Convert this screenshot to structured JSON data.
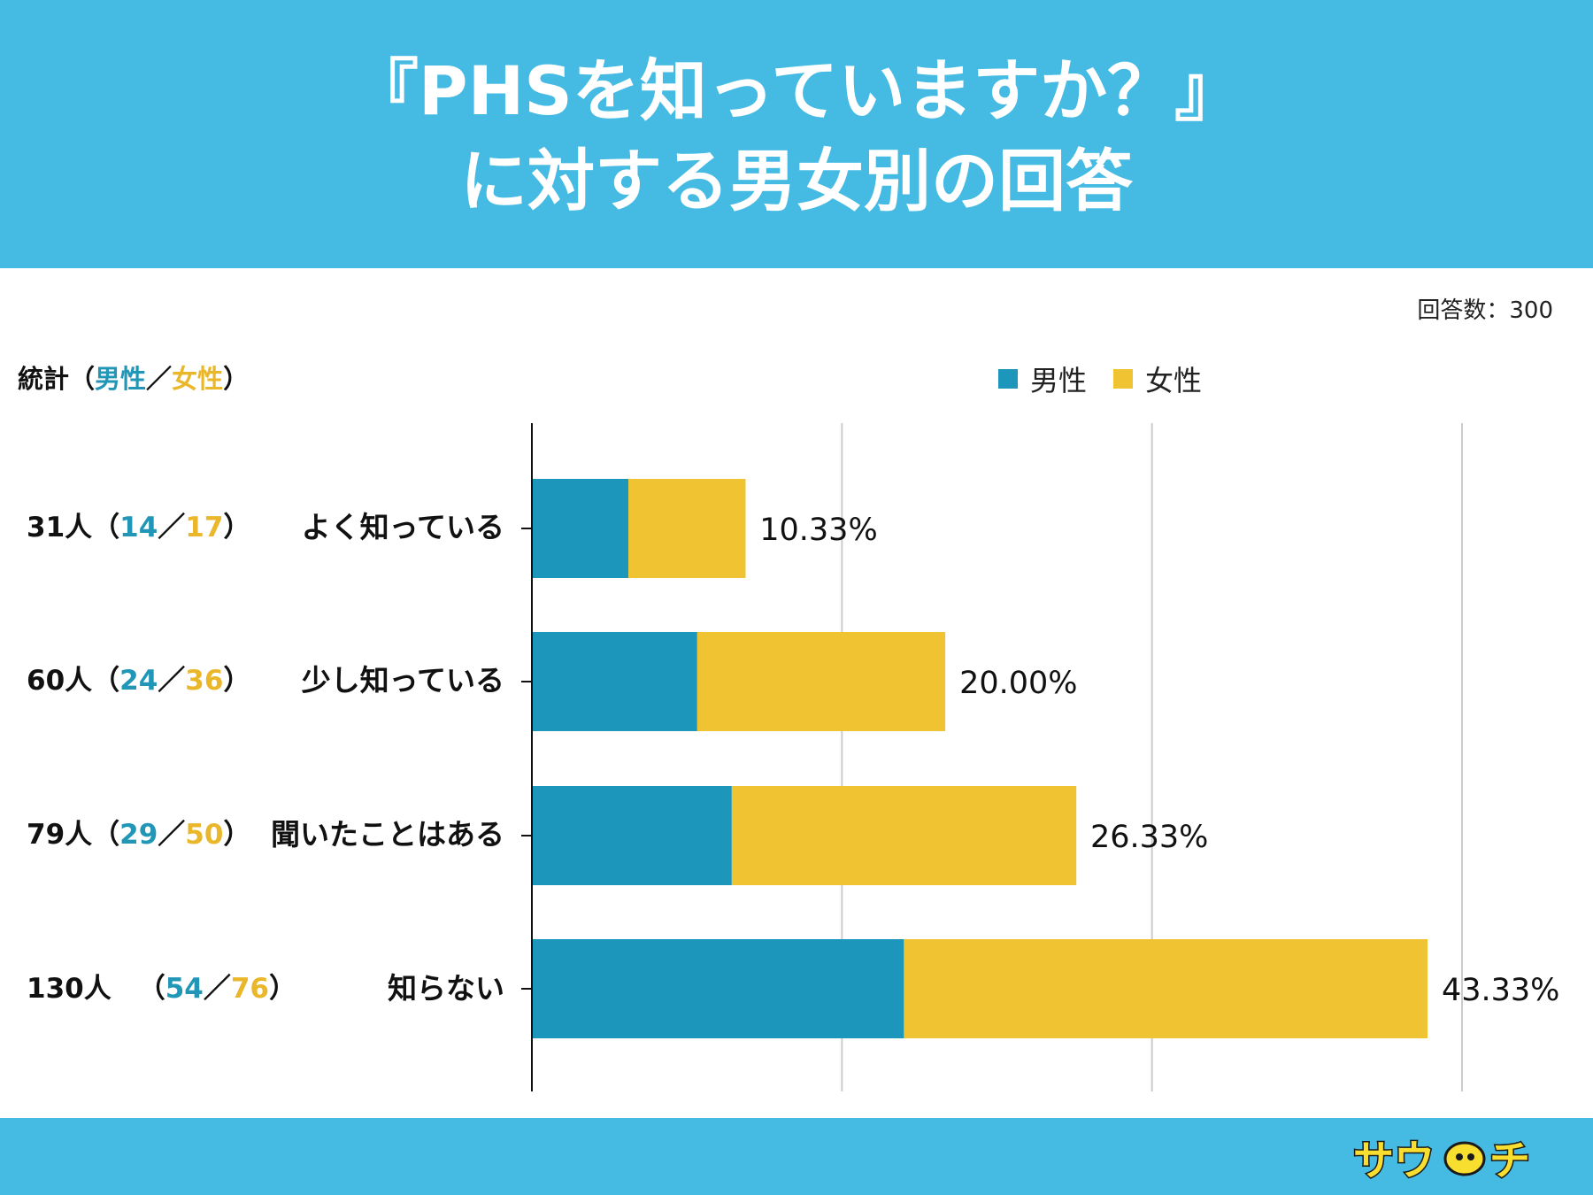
{
  "header": {
    "title_line1": "『PHSを知っていますか？』",
    "title_line2": "に対する男女別の回答"
  },
  "respondents_label": "回答数：300",
  "stats_header": {
    "prefix": "統計（",
    "male": "男性",
    "sep": "／",
    "female": "女性",
    "suffix": "）"
  },
  "legend": {
    "male": "男性",
    "female": "女性"
  },
  "colors": {
    "male": "#1c96bb",
    "female": "#f0c332",
    "header_bg": "#45bbe3",
    "gridline": "#cccccc",
    "axis": "#111111"
  },
  "rows": [
    {
      "count": "31人",
      "open": "（",
      "male": "14",
      "sep": "／",
      "female": "17",
      "close": "）",
      "label": "よく知っている",
      "pct": "10.33%"
    },
    {
      "count": "60人",
      "open": "（",
      "male": "24",
      "sep": "／",
      "female": "36",
      "close": "）",
      "label": "少し知っている",
      "pct": "20.00%"
    },
    {
      "count": "79人",
      "open": "（",
      "male": "29",
      "sep": "／",
      "female": "50",
      "close": "）",
      "label": "聞いたことはある",
      "pct": "26.33%"
    },
    {
      "count": "130人",
      "open": "（",
      "male": "54",
      "sep": "／",
      "female": "76",
      "close": "）",
      "label": "知らない",
      "pct": "43.33%"
    }
  ],
  "chart_data": {
    "type": "bar",
    "orientation": "horizontal",
    "stacked": true,
    "categories": [
      "よく知っている",
      "少し知っている",
      "聞いたことはある",
      "知らない"
    ],
    "series": [
      {
        "name": "男性",
        "values": [
          4.67,
          8.0,
          9.67,
          18.0
        ]
      },
      {
        "name": "女性",
        "values": [
          5.67,
          12.0,
          16.67,
          25.33
        ]
      }
    ],
    "totals": [
      10.33,
      20.0,
      26.33,
      43.33
    ],
    "data_labels": [
      "10.33%",
      "20.00%",
      "26.33%",
      "43.33%"
    ],
    "xlim": [
      0,
      45
    ],
    "grid": true,
    "legend_position": "top-right"
  },
  "logo_text": "サウチ"
}
